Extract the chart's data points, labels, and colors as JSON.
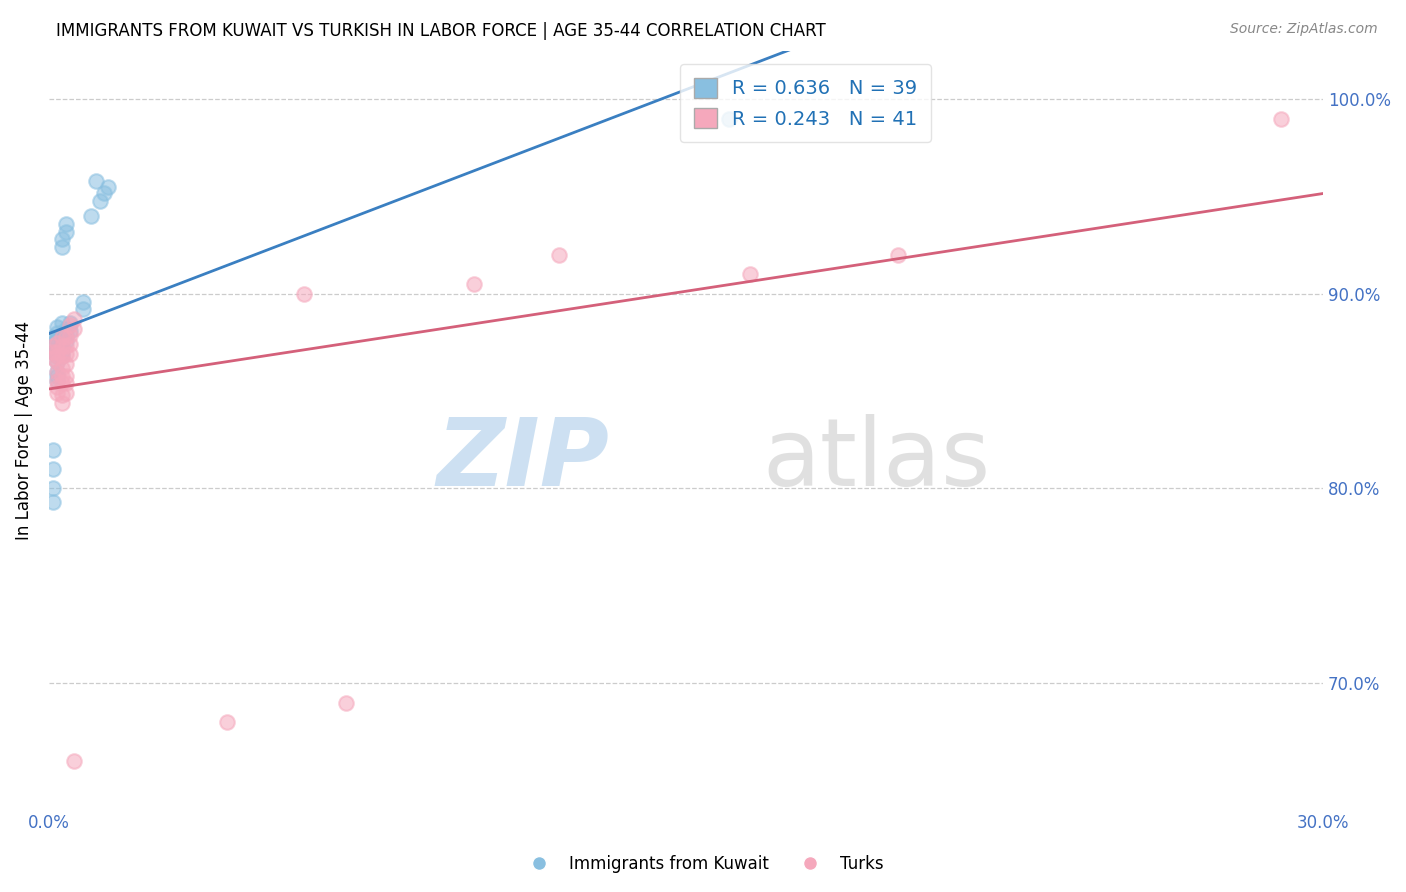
{
  "title": "IMMIGRANTS FROM KUWAIT VS TURKISH IN LABOR FORCE | AGE 35-44 CORRELATION CHART",
  "source": "Source: ZipAtlas.com",
  "ylabel": "In Labor Force | Age 35-44",
  "xlim": [
    0.0,
    0.3
  ],
  "ylim": [
    0.635,
    1.025
  ],
  "xticks": [
    0.0,
    0.05,
    0.1,
    0.15,
    0.2,
    0.25,
    0.3
  ],
  "yticks": [
    0.7,
    0.8,
    0.9,
    1.0
  ],
  "ytick_labels": [
    "70.0%",
    "80.0%",
    "90.0%",
    "100.0%"
  ],
  "blue_color": "#89bfe0",
  "blue_line_color": "#3a7fc1",
  "pink_color": "#f5a8bc",
  "pink_line_color": "#d4607a",
  "R_blue": 0.636,
  "N_blue": 39,
  "R_pink": 0.243,
  "N_pink": 41,
  "legend_label_blue": "Immigrants from Kuwait",
  "legend_label_pink": "Turks",
  "blue_scatter": [
    [
      0.001,
      0.87
    ],
    [
      0.001,
      0.875
    ],
    [
      0.001,
      0.878
    ],
    [
      0.002,
      0.88
    ],
    [
      0.002,
      0.883
    ],
    [
      0.002,
      0.877
    ],
    [
      0.002,
      0.871
    ],
    [
      0.002,
      0.868
    ],
    [
      0.002,
      0.865
    ],
    [
      0.003,
      0.885
    ],
    [
      0.003,
      0.879
    ],
    [
      0.003,
      0.876
    ],
    [
      0.003,
      0.873
    ],
    [
      0.003,
      0.87
    ],
    [
      0.003,
      0.868
    ],
    [
      0.003,
      0.928
    ],
    [
      0.003,
      0.924
    ],
    [
      0.004,
      0.882
    ],
    [
      0.004,
      0.879
    ],
    [
      0.004,
      0.876
    ],
    [
      0.004,
      0.932
    ],
    [
      0.004,
      0.936
    ],
    [
      0.005,
      0.885
    ],
    [
      0.005,
      0.881
    ],
    [
      0.001,
      0.793
    ],
    [
      0.001,
      0.8
    ],
    [
      0.008,
      0.892
    ],
    [
      0.008,
      0.896
    ],
    [
      0.01,
      0.94
    ],
    [
      0.011,
      0.958
    ],
    [
      0.012,
      0.948
    ],
    [
      0.013,
      0.952
    ],
    [
      0.014,
      0.955
    ],
    [
      0.001,
      0.81
    ],
    [
      0.001,
      0.82
    ],
    [
      0.002,
      0.858
    ],
    [
      0.16,
      0.99
    ],
    [
      0.002,
      0.855
    ],
    [
      0.002,
      0.86
    ]
  ],
  "pink_scatter": [
    [
      0.001,
      0.87
    ],
    [
      0.001,
      0.873
    ],
    [
      0.001,
      0.867
    ],
    [
      0.002,
      0.875
    ],
    [
      0.002,
      0.87
    ],
    [
      0.002,
      0.868
    ],
    [
      0.002,
      0.865
    ],
    [
      0.002,
      0.86
    ],
    [
      0.002,
      0.855
    ],
    [
      0.002,
      0.852
    ],
    [
      0.002,
      0.849
    ],
    [
      0.003,
      0.878
    ],
    [
      0.003,
      0.873
    ],
    [
      0.003,
      0.868
    ],
    [
      0.003,
      0.862
    ],
    [
      0.003,
      0.858
    ],
    [
      0.003,
      0.854
    ],
    [
      0.003,
      0.848
    ],
    [
      0.003,
      0.844
    ],
    [
      0.004,
      0.878
    ],
    [
      0.004,
      0.873
    ],
    [
      0.004,
      0.869
    ],
    [
      0.004,
      0.864
    ],
    [
      0.004,
      0.858
    ],
    [
      0.004,
      0.854
    ],
    [
      0.004,
      0.849
    ],
    [
      0.005,
      0.884
    ],
    [
      0.005,
      0.879
    ],
    [
      0.005,
      0.874
    ],
    [
      0.005,
      0.869
    ],
    [
      0.006,
      0.887
    ],
    [
      0.006,
      0.882
    ],
    [
      0.06,
      0.9
    ],
    [
      0.1,
      0.905
    ],
    [
      0.12,
      0.92
    ],
    [
      0.165,
      0.91
    ],
    [
      0.2,
      0.92
    ],
    [
      0.07,
      0.69
    ],
    [
      0.042,
      0.68
    ],
    [
      0.006,
      0.66
    ],
    [
      0.29,
      0.99
    ]
  ]
}
